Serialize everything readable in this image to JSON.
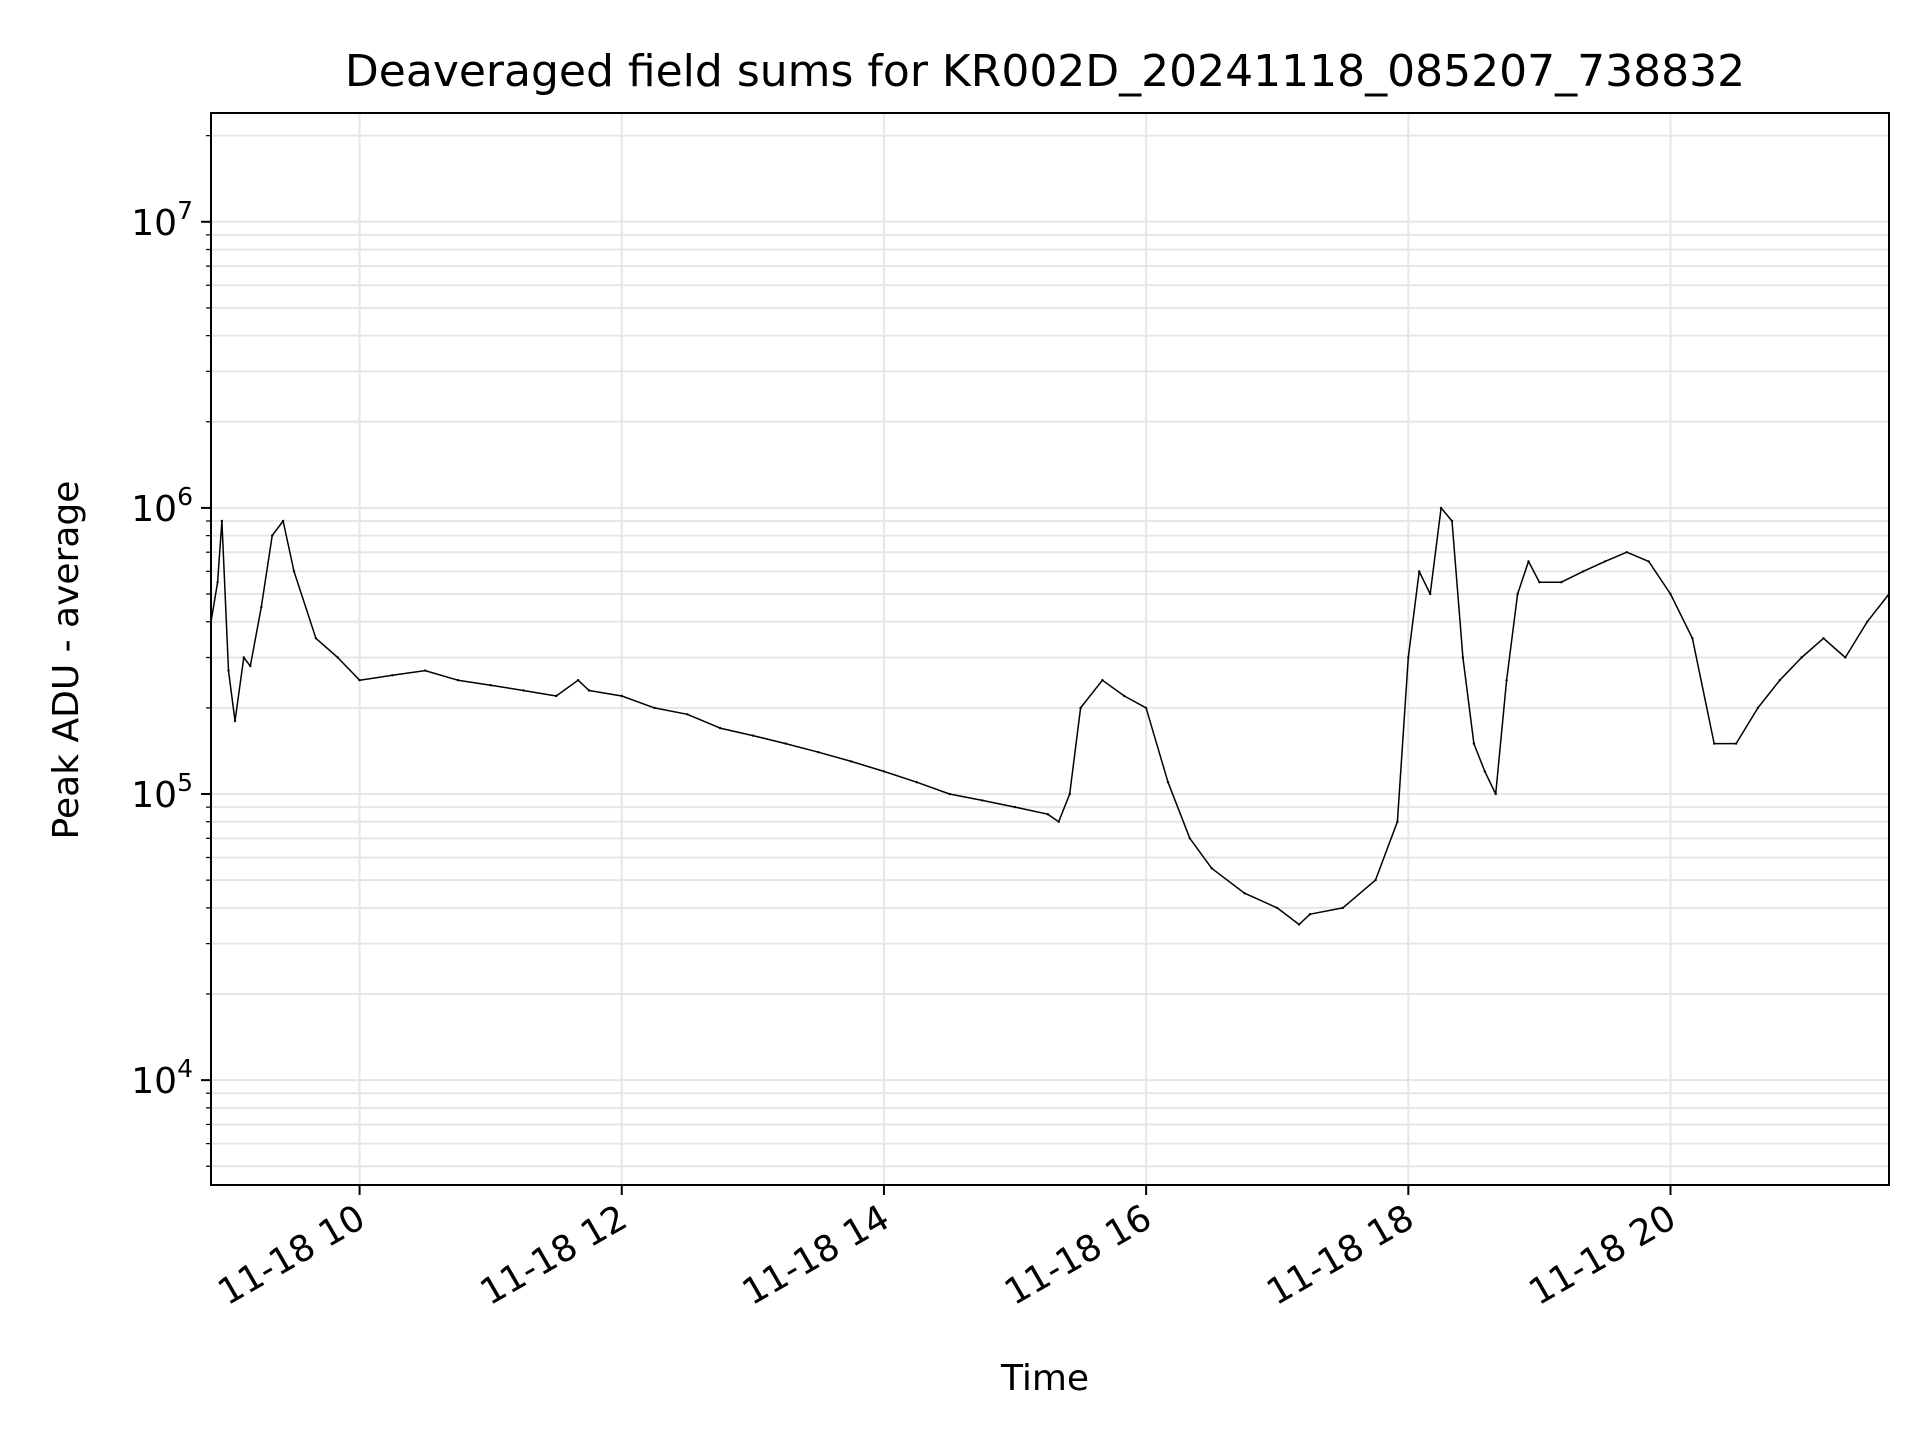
{
  "chart_data": {
    "type": "line",
    "title": "Deaveraged field sums for KR002D_20241118_085207_738832",
    "xlabel": "Time",
    "ylabel": "Peak ADU - average",
    "y_scale": "log",
    "xlim": [
      "2024-11-18 08:52",
      "2024-11-18 21:40"
    ],
    "ylim": [
      4300,
      24000000
    ],
    "grid": true,
    "line_color": "#000000",
    "grid_color": "#e6e6e6",
    "x_ticks": [
      {
        "value": "2024-11-18 10:00",
        "label": "11-18 10"
      },
      {
        "value": "2024-11-18 12:00",
        "label": "11-18 12"
      },
      {
        "value": "2024-11-18 14:00",
        "label": "11-18 14"
      },
      {
        "value": "2024-11-18 16:00",
        "label": "11-18 16"
      },
      {
        "value": "2024-11-18 18:00",
        "label": "11-18 18"
      },
      {
        "value": "2024-11-18 20:00",
        "label": "11-18 20"
      }
    ],
    "y_ticks": [
      {
        "value": 10000,
        "base": "10",
        "exp": "4"
      },
      {
        "value": 100000,
        "base": "10",
        "exp": "5"
      },
      {
        "value": 1000000,
        "base": "10",
        "exp": "6"
      },
      {
        "value": 10000000,
        "base": "10",
        "exp": "7"
      }
    ],
    "series": [
      {
        "x": [
          "2024-11-18 08:52",
          "2024-11-18 08:55",
          "2024-11-18 08:57",
          "2024-11-18 09:00",
          "2024-11-18 09:03",
          "2024-11-18 09:07",
          "2024-11-18 09:10",
          "2024-11-18 09:15",
          "2024-11-18 09:20",
          "2024-11-18 09:25",
          "2024-11-18 09:30",
          "2024-11-18 09:40",
          "2024-11-18 09:50",
          "2024-11-18 10:00",
          "2024-11-18 10:15",
          "2024-11-18 10:30",
          "2024-11-18 10:45",
          "2024-11-18 11:00",
          "2024-11-18 11:15",
          "2024-11-18 11:30",
          "2024-11-18 11:40",
          "2024-11-18 11:45",
          "2024-11-18 12:00",
          "2024-11-18 12:15",
          "2024-11-18 12:30",
          "2024-11-18 12:45",
          "2024-11-18 13:00",
          "2024-11-18 13:15",
          "2024-11-18 13:30",
          "2024-11-18 13:45",
          "2024-11-18 14:00",
          "2024-11-18 14:15",
          "2024-11-18 14:30",
          "2024-11-18 14:45",
          "2024-11-18 15:00",
          "2024-11-18 15:15",
          "2024-11-18 15:20",
          "2024-11-18 15:25",
          "2024-11-18 15:30",
          "2024-11-18 15:40",
          "2024-11-18 15:50",
          "2024-11-18 16:00",
          "2024-11-18 16:10",
          "2024-11-18 16:20",
          "2024-11-18 16:30",
          "2024-11-18 16:45",
          "2024-11-18 17:00",
          "2024-11-18 17:10",
          "2024-11-18 17:15",
          "2024-11-18 17:30",
          "2024-11-18 17:45",
          "2024-11-18 17:55",
          "2024-11-18 18:00",
          "2024-11-18 18:05",
          "2024-11-18 18:10",
          "2024-11-18 18:15",
          "2024-11-18 18:20",
          "2024-11-18 18:25",
          "2024-11-18 18:30",
          "2024-11-18 18:35",
          "2024-11-18 18:40",
          "2024-11-18 18:45",
          "2024-11-18 18:50",
          "2024-11-18 18:55",
          "2024-11-18 19:00",
          "2024-11-18 19:10",
          "2024-11-18 19:20",
          "2024-11-18 19:30",
          "2024-11-18 19:40",
          "2024-11-18 19:50",
          "2024-11-18 20:00",
          "2024-11-18 20:10",
          "2024-11-18 20:20",
          "2024-11-18 20:30",
          "2024-11-18 20:40",
          "2024-11-18 20:50",
          "2024-11-18 21:00",
          "2024-11-18 21:10",
          "2024-11-18 21:20",
          "2024-11-18 21:30",
          "2024-11-18 21:40"
        ],
        "y": [
          400000,
          550000,
          900000,
          270000,
          180000,
          300000,
          280000,
          450000,
          800000,
          900000,
          600000,
          350000,
          300000,
          250000,
          260000,
          270000,
          250000,
          240000,
          230000,
          220000,
          250000,
          230000,
          220000,
          200000,
          190000,
          170000,
          160000,
          150000,
          140000,
          130000,
          120000,
          110000,
          100000,
          95000,
          90000,
          85000,
          80000,
          100000,
          200000,
          250000,
          220000,
          200000,
          110000,
          70000,
          55000,
          45000,
          40000,
          35000,
          38000,
          40000,
          50000,
          80000,
          300000,
          600000,
          500000,
          1000000,
          900000,
          300000,
          150000,
          120000,
          100000,
          250000,
          500000,
          650000,
          550000,
          550000,
          600000,
          650000,
          700000,
          650000,
          500000,
          350000,
          150000,
          150000,
          200000,
          250000,
          300000,
          350000,
          300000,
          400000,
          500000
        ]
      }
    ]
  }
}
